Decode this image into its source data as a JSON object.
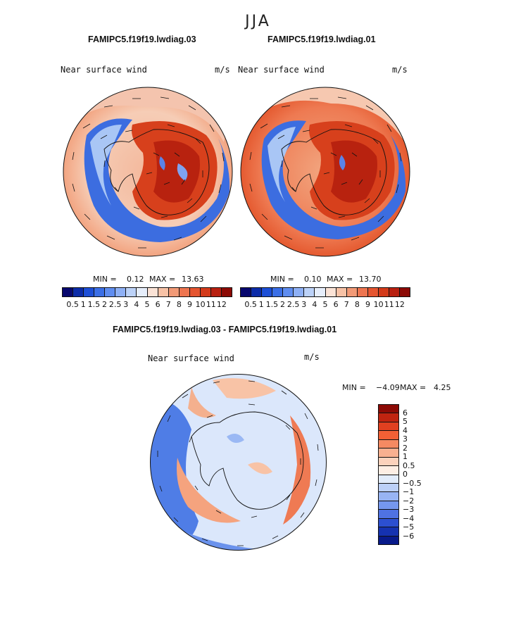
{
  "season": "JJA",
  "panels": [
    {
      "title": "FAMIPC5.f19f19.lwdiag.03",
      "label": "Near surface wind",
      "units": "m/s",
      "min_label": "MIN =",
      "min_val": "0.12",
      "max_label": "MAX =",
      "max_val": "13.63"
    },
    {
      "title": "FAMIPC5.f19f19.lwdiag.01",
      "label": "Near surface wind",
      "units": "m/s",
      "min_label": "MIN =",
      "min_val": "0.10",
      "max_label": "MAX =",
      "max_val": "13.70"
    }
  ],
  "diff": {
    "title": "FAMIPC5.f19f19.lwdiag.03 - FAMIPC5.f19f19.lwdiag.01",
    "label": "Near surface wind",
    "units": "m/s",
    "min_label": "MIN =",
    "min_val": "−4.09",
    "max_label": "MAX =",
    "max_val": "4.25"
  },
  "colorbar": {
    "colors": [
      "#08086e",
      "#0c2ca8",
      "#1d4fd6",
      "#3b6fe6",
      "#5f8df0",
      "#8eb0f5",
      "#bcd2f8",
      "#e6eefb",
      "#fbe3d6",
      "#f7c2a6",
      "#f29a77",
      "#ee7550",
      "#e55530",
      "#d33a1a",
      "#b82010",
      "#8c0a05"
    ],
    "ticks": [
      "0.5",
      "1",
      "1.5",
      "2",
      "2.5",
      "3",
      "4",
      "5",
      "6",
      "7",
      "8",
      "9",
      "10",
      "11",
      "12"
    ]
  },
  "diff_colorbar": {
    "colors": [
      "#8c0a05",
      "#c02410",
      "#e04020",
      "#f26035",
      "#f58a62",
      "#f8b090",
      "#fbd2bc",
      "#fdeee4",
      "#e2ecfb",
      "#bcd0f8",
      "#98b4f3",
      "#7597ee",
      "#4f72e2",
      "#2c4fd0",
      "#1532b0",
      "#081a8a"
    ],
    "ticks": [
      "6",
      "5",
      "4",
      "3",
      "2",
      "1",
      "0.5",
      "0",
      "−0.5",
      "−1",
      "−2",
      "−3",
      "−4",
      "−5",
      "−6"
    ]
  }
}
